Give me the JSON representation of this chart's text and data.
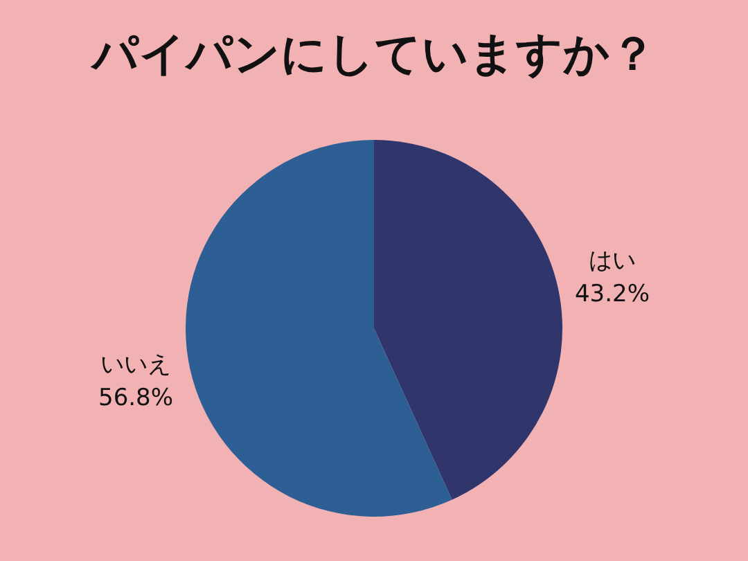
{
  "chart_data": {
    "type": "pie",
    "title": "パイパンにしていますか？",
    "categories": [
      "はい",
      "いいえ"
    ],
    "values": [
      43.2,
      56.8
    ],
    "colors": [
      "#30356b",
      "#2e5f94"
    ],
    "value_labels": [
      "43.2%",
      "56.8%"
    ]
  }
}
